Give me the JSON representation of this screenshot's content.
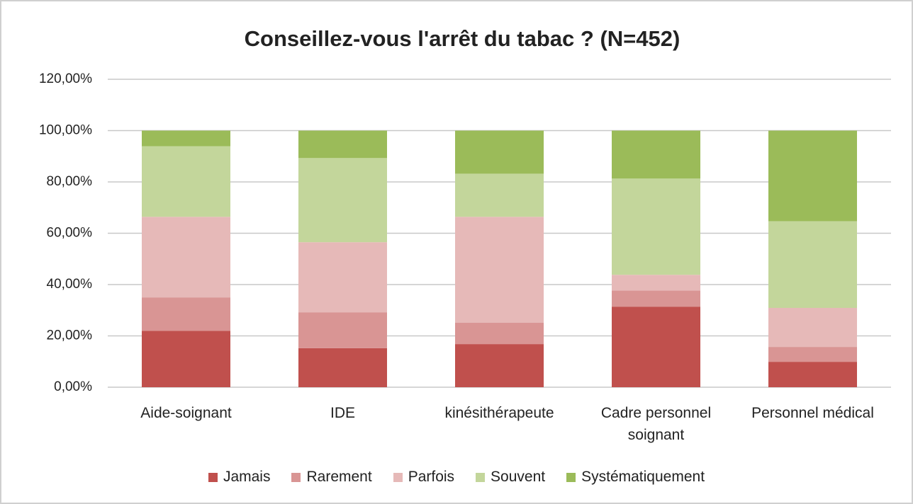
{
  "chart_data": {
    "type": "stacked_bar",
    "title": "Conseillez-vous l'arrêt du tabac ? (N=452)",
    "categories": [
      "Aide-soignant",
      "IDE",
      "kinésithérapeute",
      "Cadre personnel soignant",
      "Personnel médical"
    ],
    "series": [
      {
        "name": "Jamais",
        "color": "#c0504d",
        "values": [
          22.0,
          15.2,
          16.8,
          31.4,
          9.9
        ]
      },
      {
        "name": "Rarement",
        "color": "#d99594",
        "values": [
          13.0,
          14.0,
          8.3,
          6.3,
          5.8
        ]
      },
      {
        "name": "Parfois",
        "color": "#e6b9b8",
        "values": [
          31.4,
          27.3,
          41.3,
          6.1,
          15.2
        ]
      },
      {
        "name": "Souvent",
        "color": "#c3d69b",
        "values": [
          27.5,
          32.8,
          16.8,
          37.5,
          33.8
        ]
      },
      {
        "name": "Systématiquement",
        "color": "#9bbb59",
        "values": [
          6.1,
          10.7,
          16.8,
          18.7,
          35.3
        ]
      }
    ],
    "ylim": [
      0,
      120
    ],
    "yticks": [
      {
        "value": 0,
        "label": "0,00%"
      },
      {
        "value": 20,
        "label": "20,00%"
      },
      {
        "value": 40,
        "label": "40,00%"
      },
      {
        "value": 60,
        "label": "60,00%"
      },
      {
        "value": 80,
        "label": "80,00%"
      },
      {
        "value": 100,
        "label": "100,00%"
      },
      {
        "value": 120,
        "label": "120,00%"
      }
    ],
    "grid": true,
    "legend": "bottom"
  }
}
